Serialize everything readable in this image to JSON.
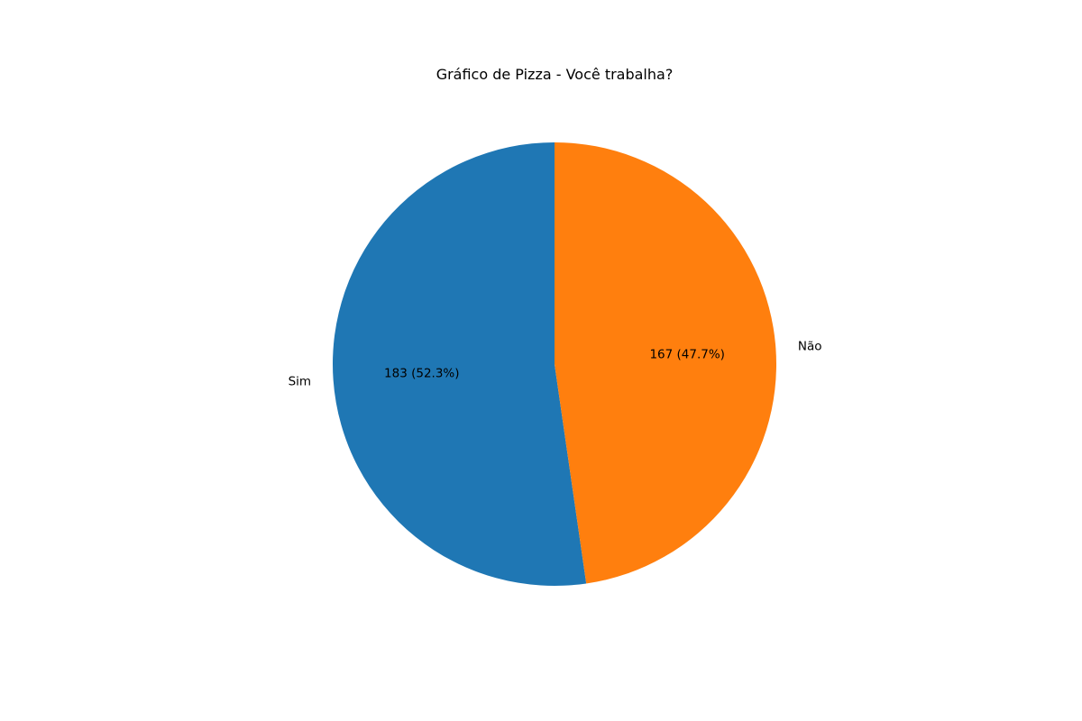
{
  "chart_data": {
    "type": "pie",
    "title": "Gráfico de Pizza - Você trabalha?",
    "slices": [
      {
        "label": "Sim",
        "value": 183,
        "percent_label": "183 (52.3%)",
        "color": "#1f77b4"
      },
      {
        "label": "Não",
        "value": 167,
        "percent_label": "167 (47.7%)",
        "color": "#ff7f0e"
      }
    ],
    "start_angle_deg": 90,
    "direction": "counterclockwise"
  }
}
